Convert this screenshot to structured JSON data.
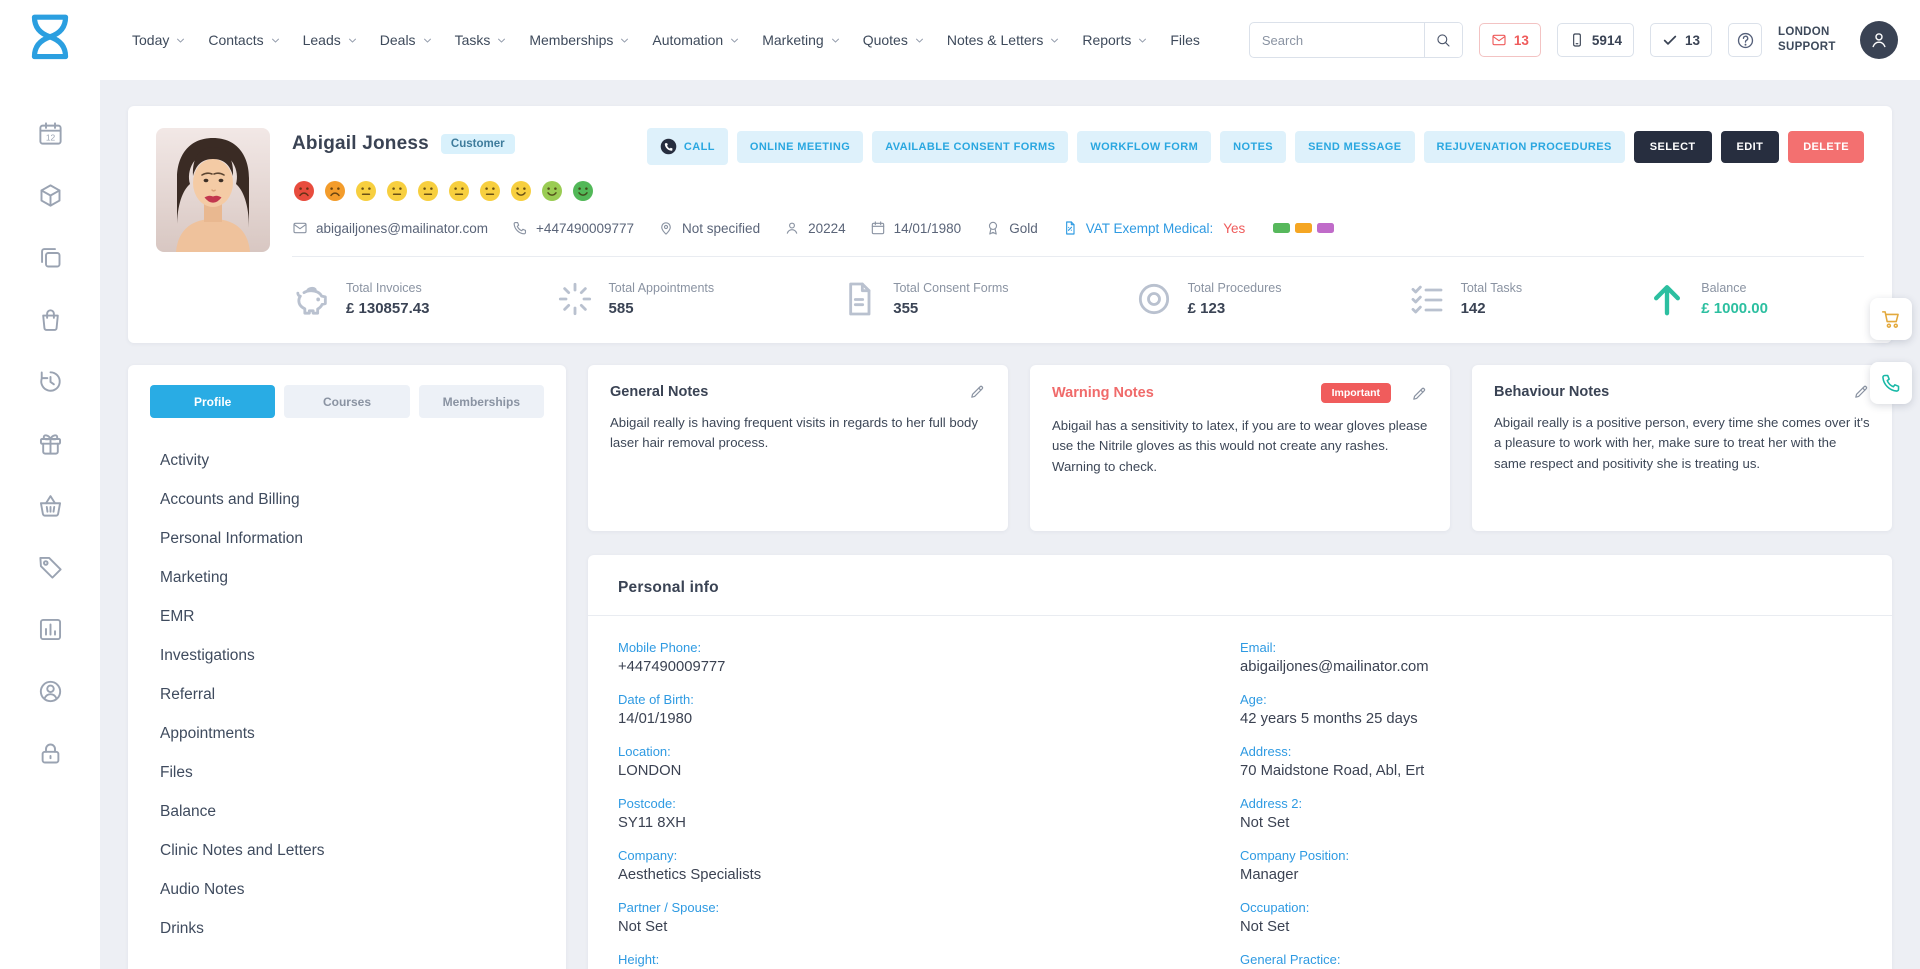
{
  "nav": {
    "items": [
      {
        "label": "Today",
        "dropdown": true
      },
      {
        "label": "Contacts",
        "dropdown": true
      },
      {
        "label": "Leads",
        "dropdown": true
      },
      {
        "label": "Deals",
        "dropdown": true
      },
      {
        "label": "Tasks",
        "dropdown": true
      },
      {
        "label": "Memberships",
        "dropdown": true
      },
      {
        "label": "Automation",
        "dropdown": true
      },
      {
        "label": "Marketing",
        "dropdown": true
      },
      {
        "label": "Quotes",
        "dropdown": true
      },
      {
        "label": "Notes & Letters",
        "dropdown": true
      },
      {
        "label": "Reports",
        "dropdown": true
      },
      {
        "label": "Files",
        "dropdown": false
      }
    ],
    "search_placeholder": "Search",
    "badges": {
      "mail_count": "13",
      "phone_count": "5914",
      "check_count": "13"
    },
    "account_label": "LONDON SUPPORT"
  },
  "sidebar": {
    "icons": [
      "calendar12-icon",
      "package-icon",
      "copy-icon",
      "bag-icon",
      "history-icon",
      "gift-icon",
      "basket-icon",
      "tag-icon",
      "chart-icon",
      "user-clock-icon",
      "lock-icon"
    ]
  },
  "profile": {
    "name": "Abigail Joness",
    "badge": "Customer",
    "email": "abigailjones@mailinator.com",
    "phone": "+447490009777",
    "location": "Not specified",
    "id": "20224",
    "dob": "14/01/1980",
    "tier": "Gold",
    "vat_label": "VAT Exempt Medical:",
    "vat_value": "Yes",
    "swatches": [
      "#57b85c",
      "#f5a623",
      "#c06bc9"
    ],
    "moods": [
      {
        "color": "#e84c3d",
        "mouth": "frown"
      },
      {
        "color": "#f39c2b",
        "mouth": "frown"
      },
      {
        "color": "#f7cf3f",
        "mouth": "neutral"
      },
      {
        "color": "#f7cf3f",
        "mouth": "neutral"
      },
      {
        "color": "#f7cf3f",
        "mouth": "neutral"
      },
      {
        "color": "#f7cf3f",
        "mouth": "neutral"
      },
      {
        "color": "#f7cf3f",
        "mouth": "neutral"
      },
      {
        "color": "#f7cf3f",
        "mouth": "smile"
      },
      {
        "color": "#9acc53",
        "mouth": "smile"
      },
      {
        "color": "#52b858",
        "mouth": "smile"
      }
    ],
    "actions": [
      {
        "label": "CALL",
        "icon": "call-phone-icon"
      },
      {
        "label": "ONLINE MEETING"
      },
      {
        "label": "AVAILABLE CONSENT FORMS"
      },
      {
        "label": "WORKFLOW FORM"
      },
      {
        "label": "NOTES"
      },
      {
        "label": "SEND MESSAGE"
      },
      {
        "label": "REJUVENATION PROCEDURES"
      }
    ],
    "actions_dark": [
      "SELECT",
      "EDIT"
    ],
    "action_delete": "DELETE"
  },
  "stats": [
    {
      "label": "Total Invoices",
      "value": "£ 130857.43",
      "icon": "piggy-bank-icon"
    },
    {
      "label": "Total Appointments",
      "value": "585",
      "icon": "confetti-icon"
    },
    {
      "label": "Total Consent Forms",
      "value": "355",
      "icon": "document-icon"
    },
    {
      "label": "Total Procedures",
      "value": "£ 123",
      "icon": "donut-icon"
    },
    {
      "label": "Total Tasks",
      "value": "142",
      "icon": "tasks-icon"
    },
    {
      "label": "Balance",
      "value": "£ 1000.00",
      "icon": "arrow-up-icon",
      "highlight": true
    }
  ],
  "panel": {
    "tabs": [
      {
        "label": "Profile",
        "active": true
      },
      {
        "label": "Courses",
        "active": false
      },
      {
        "label": "Memberships",
        "active": false
      }
    ],
    "menu": [
      "Activity",
      "Accounts and Billing",
      "Personal Information",
      "Marketing",
      "EMR",
      "Investigations",
      "Referral",
      "Appointments",
      "Files",
      "Balance",
      "Clinic Notes and Letters",
      "Audio Notes",
      "Drinks"
    ]
  },
  "notes": {
    "general": {
      "title": "General Notes",
      "text": "Abigail really is having frequent visits in regards to her full body laser hair removal process."
    },
    "warning": {
      "title": "Warning Notes",
      "badge": "Important",
      "text": "Abigail has a sensitivity to latex, if you are to wear gloves please use the Nitrile gloves as this would not create any rashes. Warning to check."
    },
    "behaviour": {
      "title": "Behaviour Notes",
      "text": "Abigail really is a positive person, every time she comes over it's a pleasure to work with her, make sure to treat her with the same respect and positivity she is treating us."
    }
  },
  "personal_info": {
    "title": "Personal info",
    "left": [
      {
        "label": "Mobile Phone:",
        "value": "+447490009777"
      },
      {
        "label": "Date of Birth:",
        "value": "14/01/1980"
      },
      {
        "label": "Location:",
        "value": "LONDON"
      },
      {
        "label": "Postcode:",
        "value": "SY11 8XH"
      },
      {
        "label": "Company:",
        "value": "Aesthetics Specialists"
      },
      {
        "label": "Partner / Spouse:",
        "value": "Not Set"
      },
      {
        "label": "Height:",
        "value": ""
      }
    ],
    "right": [
      {
        "label": "Email:",
        "value": "abigailjones@mailinator.com"
      },
      {
        "label": "Age:",
        "value": "42 years 5 months 25 days"
      },
      {
        "label": "Address:",
        "value": "70 Maidstone Road, Abl, Ert"
      },
      {
        "label": "Address 2:",
        "value": "Not Set"
      },
      {
        "label": "Company Position:",
        "value": "Manager"
      },
      {
        "label": "Occupation:",
        "value": "Not Set"
      },
      {
        "label": "General Practice:",
        "value": ""
      }
    ]
  },
  "colors": {
    "accent_blue": "#29ace4",
    "dark_navy": "#272e3f",
    "danger_red": "#f37070",
    "warning_text": "#f06a6a",
    "success_teal": "#2cbfa0",
    "label_blue": "#2e9ae2"
  }
}
